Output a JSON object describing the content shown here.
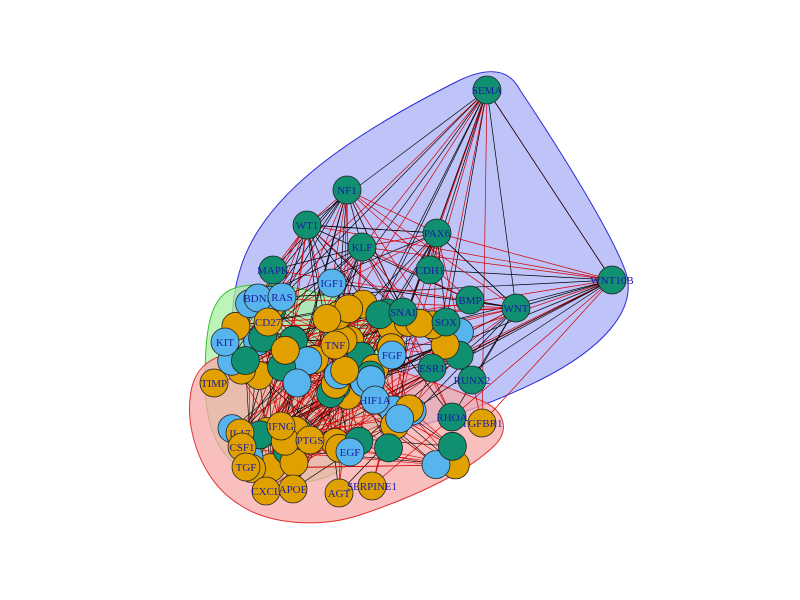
{
  "diagram": {
    "type": "network-graph",
    "groups": [
      {
        "id": "blue",
        "fill": "#aab0f5",
        "stroke": "#2b2bd9"
      },
      {
        "id": "green",
        "fill": "#a9f0a0",
        "stroke": "#36c236"
      },
      {
        "id": "red",
        "fill": "#f7a9a9",
        "stroke": "#e03030"
      }
    ],
    "node_colors": {
      "teal": "#109070",
      "orange": "#e0a000",
      "skyblue": "#58b4ec"
    },
    "edge_colors": [
      "#000000",
      "#d00000"
    ],
    "label_color": "#1a1aa6",
    "nodes": [
      {
        "label": "SEMA",
        "color": "teal",
        "group": "blue"
      },
      {
        "label": "NF1",
        "color": "teal",
        "group": "blue"
      },
      {
        "label": "WT1",
        "color": "teal",
        "group": "blue"
      },
      {
        "label": "PAX6",
        "color": "teal",
        "group": "blue"
      },
      {
        "label": "WNT10B",
        "color": "teal",
        "group": "blue"
      },
      {
        "label": "MAPK",
        "color": "teal",
        "group": "blue"
      },
      {
        "label": "WNT",
        "color": "teal",
        "group": "blue"
      },
      {
        "label": "RUNX2",
        "color": "teal",
        "group": "blue"
      },
      {
        "label": "TGFBR1",
        "color": "orange",
        "group": "red"
      },
      {
        "label": "BDNF",
        "color": "skyblue",
        "group": "green"
      },
      {
        "label": "RAS",
        "color": "skyblue",
        "group": "green"
      },
      {
        "label": "IGF1",
        "color": "skyblue",
        "group": "green"
      },
      {
        "label": "KIT",
        "color": "skyblue",
        "group": "green"
      },
      {
        "label": "TIMP",
        "color": "orange",
        "group": "red"
      },
      {
        "label": "IL17",
        "color": "orange",
        "group": "red"
      },
      {
        "label": "CSF1",
        "color": "orange",
        "group": "red"
      },
      {
        "label": "TGF",
        "color": "orange",
        "group": "red"
      },
      {
        "label": "CXCL",
        "color": "orange",
        "group": "red"
      },
      {
        "label": "APOE",
        "color": "orange",
        "group": "red"
      },
      {
        "label": "AGT",
        "color": "orange",
        "group": "red"
      },
      {
        "label": "SERPINE1",
        "color": "orange",
        "group": "red"
      },
      {
        "label": "IFNG",
        "color": "orange",
        "group": "red"
      },
      {
        "label": "PTGS",
        "color": "orange",
        "group": "red"
      },
      {
        "label": "EGF",
        "color": "skyblue",
        "group": "green"
      },
      {
        "label": "FGF",
        "color": "skyblue",
        "group": "green"
      },
      {
        "label": "CD27",
        "color": "orange",
        "group": "red"
      },
      {
        "label": "SOX",
        "color": "teal",
        "group": "blue"
      },
      {
        "label": "RHOA",
        "color": "teal",
        "group": "blue"
      },
      {
        "label": "KLF",
        "color": "teal",
        "group": "blue"
      },
      {
        "label": "SNAI",
        "color": "teal",
        "group": "blue"
      },
      {
        "label": "CDH1",
        "color": "teal",
        "group": "blue"
      },
      {
        "label": "BMP",
        "color": "teal",
        "group": "blue"
      },
      {
        "label": "ESR1",
        "color": "teal",
        "group": "blue"
      },
      {
        "label": "TNF",
        "color": "orange",
        "group": "red"
      },
      {
        "label": "HIF1A",
        "color": "skyblue",
        "group": "green"
      }
    ]
  }
}
